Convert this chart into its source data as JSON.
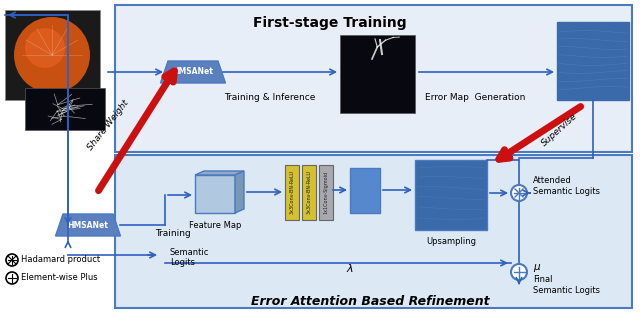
{
  "fig_width": 6.4,
  "fig_height": 3.13,
  "dpi": 100,
  "box_edge": "#4a7abf",
  "box1_face": "#e8eef8",
  "box2_face": "#dce8f4",
  "dark_blue_block": "#3a6aaa",
  "medium_blue_block": "#5588cc",
  "light_blue_block": "#a8c0dc",
  "hmsa_face": "#5b80c0",
  "arrow_blue": "#3060c0",
  "arrow_red": "#cc1010",
  "conv_yellow": "#d4c030",
  "conv_gray": "#a8a8b0",
  "title1": "First-stage Training",
  "title2": "Error Attention Based Refinement",
  "label_training": "Training & Inference",
  "label_error": "Error Map  Generation",
  "label_feature": "Feature Map",
  "label_semantic": "Semantic\nLogits",
  "label_upsampling": "Upsampling",
  "label_attended": "Attended\nSemantic Logits",
  "label_final": "Final\nSemantic Logits",
  "label_hadamard": "Hadamard product",
  "label_element": "Element-wise Plus",
  "label_hmsa": "HMSANet",
  "label_training2": "Training",
  "label_share": "Share Weight",
  "label_supervise": "Supervise",
  "label_lambda": "λ",
  "label_mu": "μ"
}
